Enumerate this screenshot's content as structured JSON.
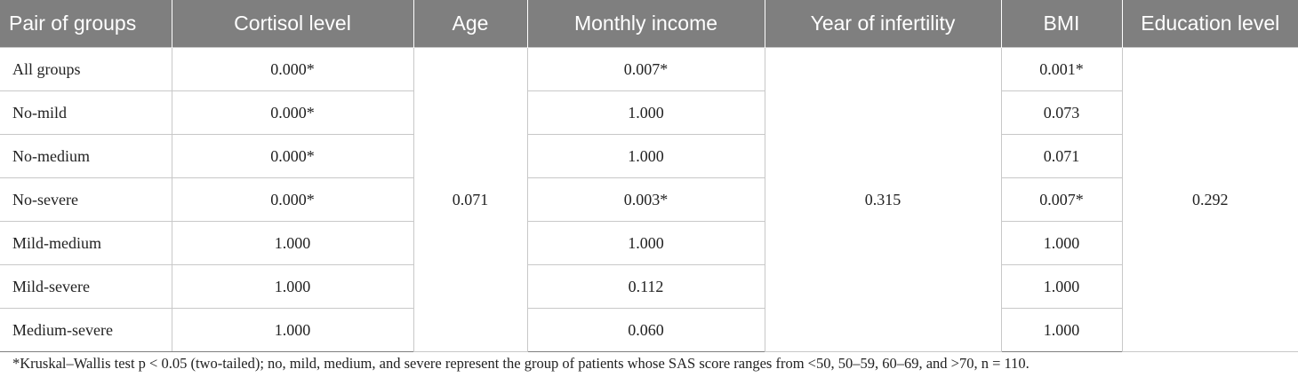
{
  "table": {
    "headers": [
      "Pair of groups",
      "Cortisol level",
      "Age",
      "Monthly income",
      "Year of infertility",
      "BMI",
      "Education level"
    ],
    "rows": [
      {
        "pair": "All groups",
        "cortisol": "0.000*",
        "income": "0.007*",
        "bmi": "0.001*"
      },
      {
        "pair": "No-mild",
        "cortisol": "0.000*",
        "income": "1.000",
        "bmi": "0.073"
      },
      {
        "pair": "No-medium",
        "cortisol": "0.000*",
        "income": "1.000",
        "bmi": "0.071"
      },
      {
        "pair": "No-severe",
        "cortisol": "0.000*",
        "income": "0.003*",
        "bmi": "0.007*"
      },
      {
        "pair": "Mild-medium",
        "cortisol": "1.000",
        "income": "1.000",
        "bmi": "1.000"
      },
      {
        "pair": "Mild-severe",
        "cortisol": "1.000",
        "income": "0.112",
        "bmi": "1.000"
      },
      {
        "pair": "Medium-severe",
        "cortisol": "1.000",
        "income": "0.060",
        "bmi": "1.000"
      }
    ],
    "merged": {
      "age": "0.071",
      "infertility": "0.315",
      "education": "0.292"
    }
  },
  "footnote": "*Kruskal–Wallis test p < 0.05 (two-tailed); no, mild, medium, and severe represent the group of patients whose SAS score ranges from <50, 50–59, 60–69, and >70, n = 110."
}
